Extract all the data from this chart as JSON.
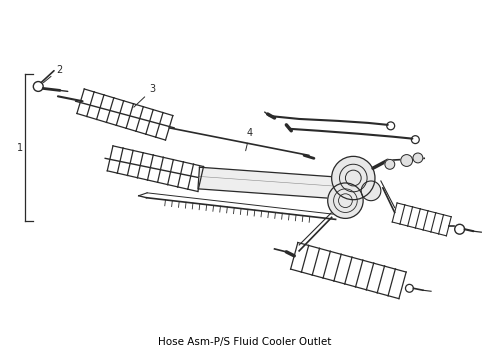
{
  "bg_color": "#ffffff",
  "line_color": "#2a2a2a",
  "fig_width": 4.9,
  "fig_height": 3.6,
  "dpi": 100,
  "title": "Hose Asm-P/S Fluid Cooler Outlet"
}
